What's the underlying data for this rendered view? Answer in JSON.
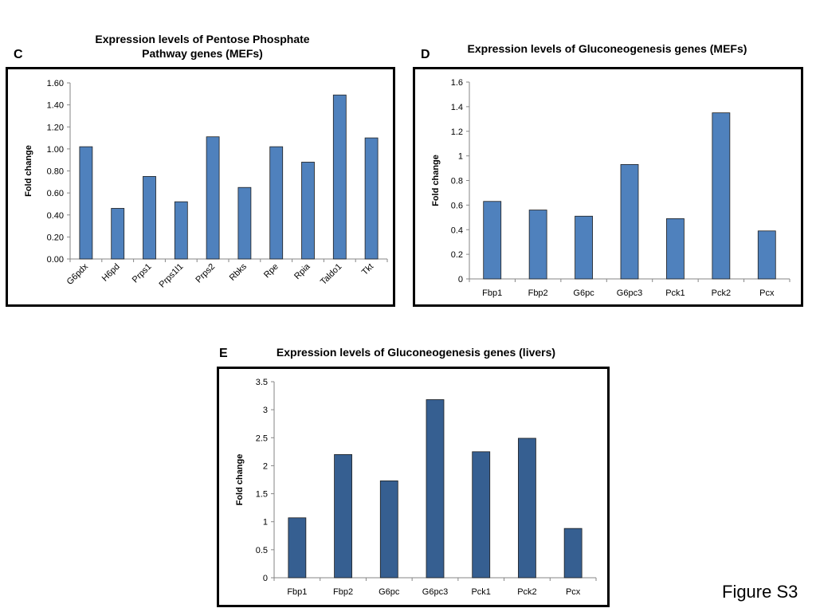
{
  "figure_label": "Figure S3",
  "chart_data": [
    {
      "panel": "C",
      "type": "bar",
      "title": "Expression levels of Pentose Phosphate Pathway genes (MEFs)",
      "title_lines": [
        "Expression levels of Pentose Phosphate",
        "Pathway genes (MEFs)"
      ],
      "ylabel": "Fold change",
      "xlabel": "",
      "ylim": [
        0,
        1.6
      ],
      "yticks": [
        "0.00",
        "0.20",
        "0.40",
        "0.60",
        "0.80",
        "1.00",
        "1.20",
        "1.40",
        "1.60"
      ],
      "categories": [
        "G6pdx",
        "H6pd",
        "Prps1",
        "Prps1l1",
        "Prps2",
        "Rbks",
        "Rpe",
        "Rpia",
        "Taldo1",
        "Tkt"
      ],
      "values": [
        1.02,
        0.46,
        0.75,
        0.52,
        1.11,
        0.65,
        1.02,
        0.88,
        1.49,
        1.1
      ],
      "bar_color": "#4f81bd",
      "grid": false
    },
    {
      "panel": "D",
      "type": "bar",
      "title": "Expression levels of Gluconeogenesis genes (MEFs)",
      "title_lines": [
        "Expression levels of Gluconeogenesis  genes (MEFs)"
      ],
      "ylabel": "Fold change",
      "xlabel": "",
      "ylim": [
        0,
        1.6
      ],
      "yticks": [
        "0",
        "0.2",
        "0.4",
        "0.6",
        "0.8",
        "1",
        "1.2",
        "1.4",
        "1.6"
      ],
      "categories": [
        "Fbp1",
        "Fbp2",
        "G6pc",
        "G6pc3",
        "Pck1",
        "Pck2",
        "Pcx"
      ],
      "values": [
        0.63,
        0.56,
        0.51,
        0.93,
        0.49,
        1.35,
        0.39
      ],
      "bar_color": "#4f81bd",
      "grid": false
    },
    {
      "panel": "E",
      "type": "bar",
      "title": "Expression levels of Gluconeogenesis genes (livers)",
      "title_lines": [
        "Expression levels of Gluconeogenesis  genes (livers)"
      ],
      "ylabel": "Fold change",
      "xlabel": "",
      "ylim": [
        0,
        3.5
      ],
      "yticks": [
        "0",
        "0.5",
        "1",
        "1.5",
        "2",
        "2.5",
        "3",
        "3.5"
      ],
      "categories": [
        "Fbp1",
        "Fbp2",
        "G6pc",
        "G6pc3",
        "Pck1",
        "Pck2",
        "Pcx"
      ],
      "values": [
        1.07,
        2.2,
        1.73,
        3.18,
        2.25,
        2.49,
        0.88
      ],
      "bar_color": "#365f91",
      "grid": false
    }
  ]
}
